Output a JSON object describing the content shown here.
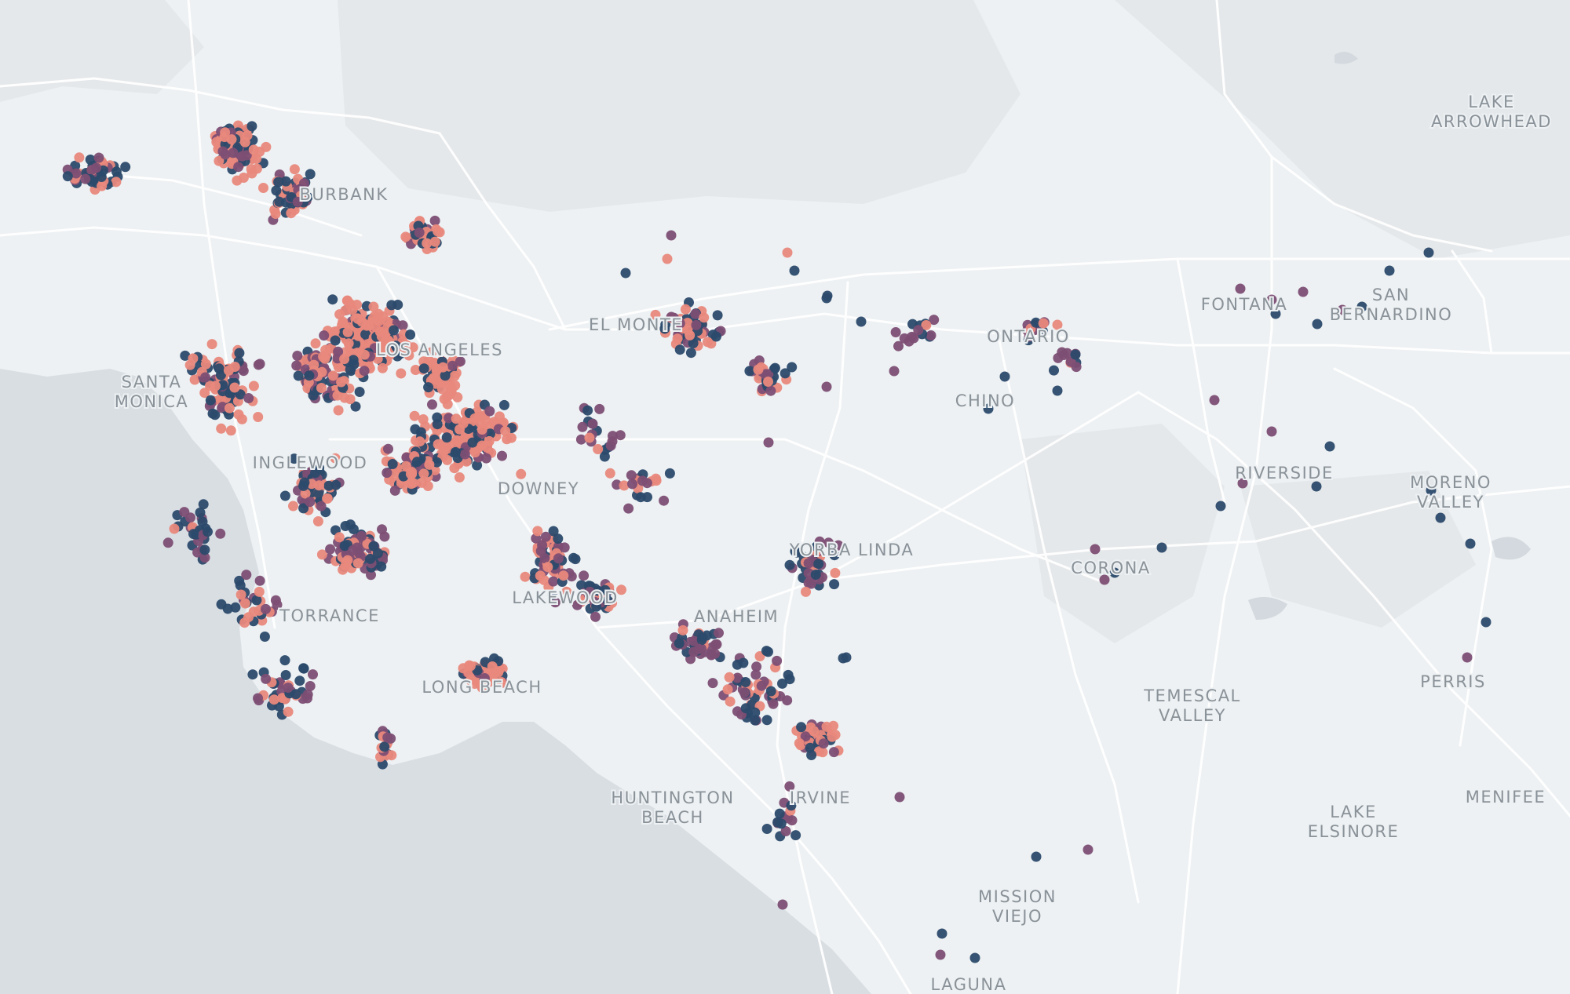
{
  "map": {
    "region": "Los Angeles / Orange County / Inland Empire",
    "colors": {
      "land": "#edf1f3",
      "water": "#d9dee3",
      "park": "#e4e7e9",
      "road": "#ffffff",
      "label": "#8a9299",
      "point_low": "#e9887c",
      "point_mid": "#7d4e74",
      "point_high": "#2c4a6b"
    },
    "place_labels": [
      {
        "lines": [
          "LAKE",
          "ARROWHEAD"
        ]
      },
      {
        "lines": [
          "BURBANK"
        ]
      },
      {
        "lines": [
          "SAN",
          "BERNARDINO"
        ]
      },
      {
        "lines": [
          "FONTANA"
        ]
      },
      {
        "lines": [
          "EL MONTE"
        ]
      },
      {
        "lines": [
          "LOS ANGELES"
        ]
      },
      {
        "lines": [
          "ONTARIO"
        ]
      },
      {
        "lines": [
          "SANTA",
          "MONICA"
        ]
      },
      {
        "lines": [
          "CHINO"
        ]
      },
      {
        "lines": [
          "INGLEWOOD"
        ]
      },
      {
        "lines": [
          "RIVERSIDE"
        ]
      },
      {
        "lines": [
          "DOWNEY"
        ]
      },
      {
        "lines": [
          "MORENO",
          "VALLEY"
        ]
      },
      {
        "lines": [
          "YORBA LINDA"
        ]
      },
      {
        "lines": [
          "CORONA"
        ]
      },
      {
        "lines": [
          "LAKEWOOD"
        ]
      },
      {
        "lines": [
          "TORRANCE"
        ]
      },
      {
        "lines": [
          "ANAHEIM"
        ]
      },
      {
        "lines": [
          "PERRIS"
        ]
      },
      {
        "lines": [
          "LONG BEACH"
        ]
      },
      {
        "lines": [
          "TEMESCAL",
          "VALLEY"
        ]
      },
      {
        "lines": [
          "HUNTINGTON",
          "BEACH"
        ]
      },
      {
        "lines": [
          "IRVINE"
        ]
      },
      {
        "lines": [
          "MENIFEE"
        ]
      },
      {
        "lines": [
          "LAKE",
          "ELSINORE"
        ]
      },
      {
        "lines": [
          "MISSION",
          "VIEJO"
        ]
      },
      {
        "lines": [
          "LAGUNA"
        ]
      }
    ]
  }
}
